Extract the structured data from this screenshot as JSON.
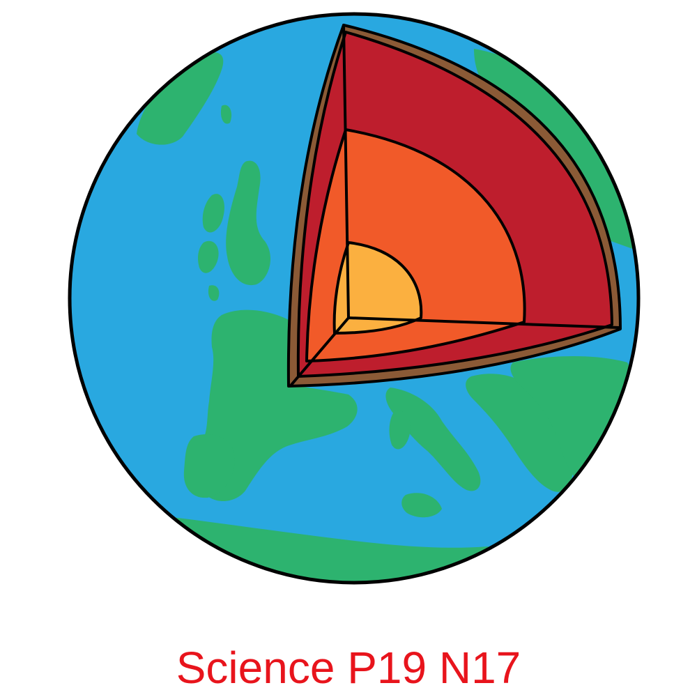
{
  "caption": "Science P19 N17",
  "colors": {
    "ocean": "#29a8e0",
    "land": "#2db36f",
    "crust": "#8b5a36",
    "mantle": "#be1e2d",
    "outer_core": "#f15a29",
    "inner_core": "#fbb040",
    "outline": "#000000",
    "caption": "#e8141c"
  },
  "layers": [
    "crust",
    "mantle",
    "outer-core",
    "inner-core"
  ]
}
